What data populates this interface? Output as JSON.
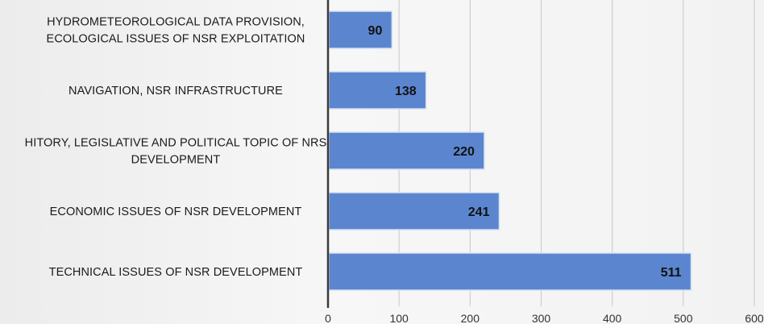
{
  "chart_data": {
    "type": "bar",
    "orientation": "horizontal",
    "title": "",
    "xlabel": "",
    "ylabel": "",
    "categories": [
      [
        "HYDROMETEOROLOGICAL DATA PROVISION,",
        "ECOLOGICAL ISSUES OF NSR EXPLOITATION"
      ],
      [
        "NAVIGATION, NSR INFRASTRUCTURE"
      ],
      [
        "HITORY, LEGISLATIVE AND POLITICAL TOPIC OF NRS",
        "DEVELOPMENT"
      ],
      [
        "ECONOMIC ISSUES OF NSR DEVELOPMENT"
      ],
      [
        "TECHNICAL ISSUES OF NSR DEVELOPMENT"
      ]
    ],
    "values": [
      90,
      138,
      220,
      241,
      511
    ],
    "data_labels": [
      "90",
      "138",
      "220",
      "241",
      "511"
    ],
    "xlim": [
      0,
      600
    ],
    "x_ticks": [
      0,
      100,
      200,
      300,
      400,
      500,
      600
    ],
    "x_tick_labels": [
      "0",
      "100",
      "200",
      "300",
      "400",
      "500",
      "600"
    ],
    "grid": true,
    "legend": "none",
    "colors": {
      "bar": "#5b86cf",
      "bar_edge": "#d6e1f3",
      "grid": "#c8c8c8",
      "axis": "#3a3a3a"
    }
  }
}
